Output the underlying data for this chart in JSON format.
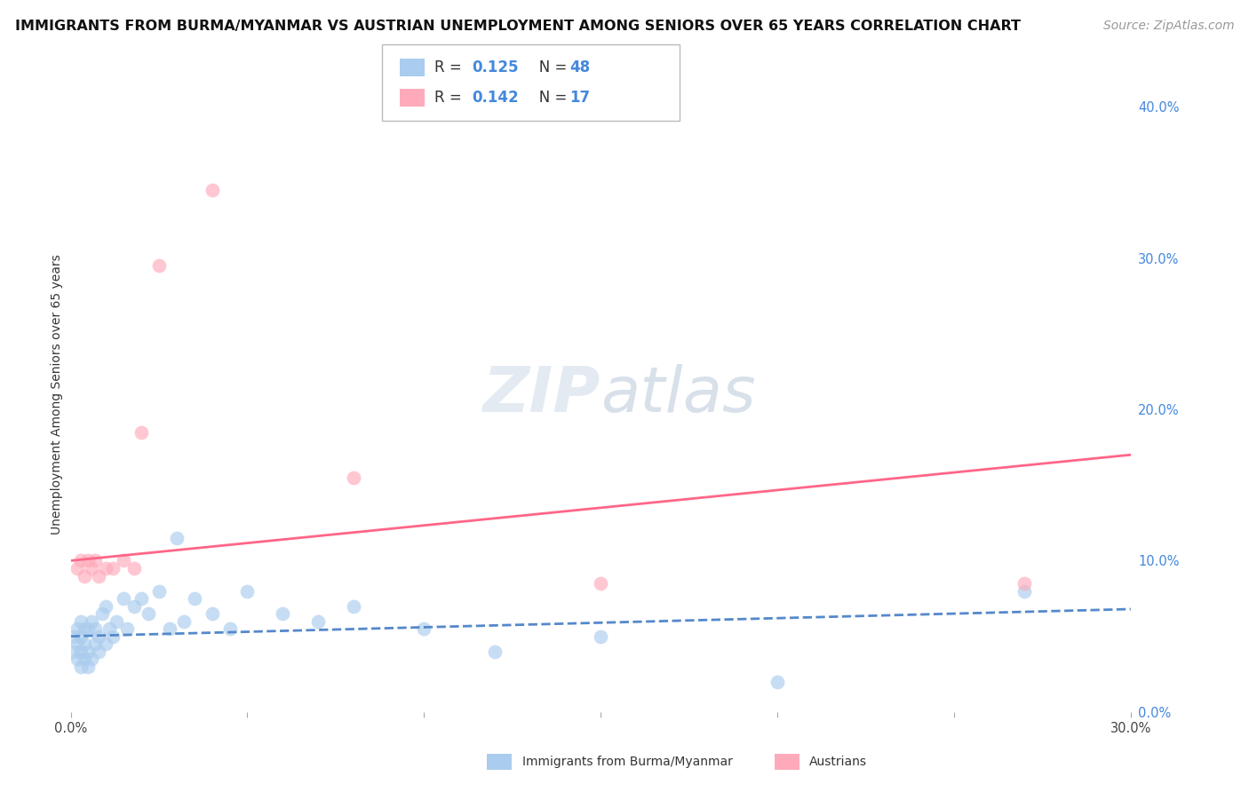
{
  "title": "IMMIGRANTS FROM BURMA/MYANMAR VS AUSTRIAN UNEMPLOYMENT AMONG SENIORS OVER 65 YEARS CORRELATION CHART",
  "source": "Source: ZipAtlas.com",
  "ylabel": "Unemployment Among Seniors over 65 years",
  "xlim": [
    0.0,
    0.3
  ],
  "ylim": [
    0.0,
    0.42
  ],
  "xticks": [
    0.0,
    0.05,
    0.1,
    0.15,
    0.2,
    0.25,
    0.3
  ],
  "xtick_labels": [
    "0.0%",
    "",
    "",
    "",
    "",
    "",
    "30.0%"
  ],
  "ytick_positions_right": [
    0.0,
    0.1,
    0.2,
    0.3,
    0.4
  ],
  "ytick_labels_right": [
    "0.0%",
    "10.0%",
    "20.0%",
    "30.0%",
    "40.0%"
  ],
  "grid_color": "#c8c8c8",
  "watermark_zip": "ZIP",
  "watermark_atlas": "atlas",
  "blue_scatter_x": [
    0.001,
    0.001,
    0.002,
    0.002,
    0.002,
    0.003,
    0.003,
    0.003,
    0.003,
    0.004,
    0.004,
    0.004,
    0.005,
    0.005,
    0.005,
    0.006,
    0.006,
    0.007,
    0.007,
    0.008,
    0.008,
    0.009,
    0.01,
    0.01,
    0.011,
    0.012,
    0.013,
    0.015,
    0.016,
    0.018,
    0.02,
    0.022,
    0.025,
    0.028,
    0.03,
    0.032,
    0.035,
    0.04,
    0.045,
    0.05,
    0.06,
    0.07,
    0.08,
    0.1,
    0.12,
    0.15,
    0.2,
    0.27
  ],
  "blue_scatter_y": [
    0.04,
    0.05,
    0.035,
    0.045,
    0.055,
    0.03,
    0.04,
    0.05,
    0.06,
    0.035,
    0.045,
    0.055,
    0.03,
    0.04,
    0.055,
    0.035,
    0.06,
    0.045,
    0.055,
    0.04,
    0.05,
    0.065,
    0.045,
    0.07,
    0.055,
    0.05,
    0.06,
    0.075,
    0.055,
    0.07,
    0.075,
    0.065,
    0.08,
    0.055,
    0.115,
    0.06,
    0.075,
    0.065,
    0.055,
    0.08,
    0.065,
    0.06,
    0.07,
    0.055,
    0.04,
    0.05,
    0.02,
    0.08
  ],
  "pink_scatter_x": [
    0.002,
    0.003,
    0.004,
    0.005,
    0.006,
    0.007,
    0.008,
    0.01,
    0.012,
    0.015,
    0.018,
    0.02,
    0.025,
    0.04,
    0.08,
    0.15,
    0.27
  ],
  "pink_scatter_y": [
    0.095,
    0.1,
    0.09,
    0.1,
    0.095,
    0.1,
    0.09,
    0.095,
    0.095,
    0.1,
    0.095,
    0.185,
    0.295,
    0.345,
    0.155,
    0.085,
    0.085
  ],
  "blue_line_x": [
    0.0,
    0.3
  ],
  "blue_line_y": [
    0.05,
    0.068
  ],
  "blue_line_color": "#5588cc",
  "pink_line_x": [
    0.0,
    0.3
  ],
  "pink_line_y": [
    0.1,
    0.17
  ],
  "pink_line_color": "#ff6688",
  "blue_scatter_color": "#aaccee",
  "pink_scatter_color": "#ffaabb",
  "scatter_alpha": 0.65,
  "scatter_size": 130,
  "title_fontsize": 11.5,
  "source_fontsize": 10,
  "axis_label_fontsize": 10,
  "tick_fontsize": 10.5,
  "legend_fontsize": 12,
  "watermark_fontsize_zip": 52,
  "watermark_fontsize_atlas": 52
}
